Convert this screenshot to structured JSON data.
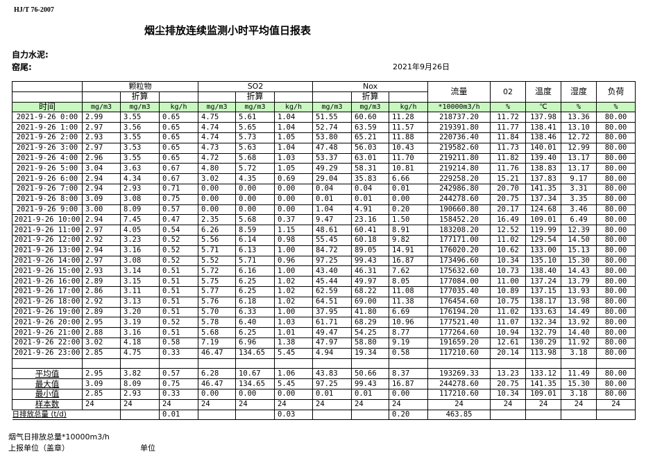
{
  "standard": "HJ/T  76-2007",
  "title": "烟尘排放连续监测小时平均值日报表",
  "company": "自力水泥:",
  "kiln": "窑尾:",
  "date": "2021年9月26日",
  "header": {
    "groups": [
      "颗粒物",
      "SO2",
      "Nox"
    ],
    "converted": "折算",
    "flow": "流量",
    "o2": "02",
    "temp": "温度",
    "humidity": "湿度",
    "load": "负荷",
    "units": [
      "时间",
      "mg/m3",
      "mg/m3",
      "kg/h",
      "mg/m3",
      "mg/m3",
      "kg/h",
      "mg/m3",
      "mg/m3",
      "kg/h",
      "*10000m3/h",
      "%",
      "℃",
      "%",
      "%"
    ]
  },
  "rows": [
    [
      "2021-9-26 0:00",
      "2.99",
      "3.55",
      "0.65",
      "4.75",
      "5.61",
      "1.04",
      "51.55",
      "60.60",
      "11.28",
      "218737.20",
      "11.72",
      "137.98",
      "13.36",
      "80.00"
    ],
    [
      "2021-9-26 1:00",
      "2.97",
      "3.56",
      "0.65",
      "4.74",
      "5.65",
      "1.04",
      "52.74",
      "63.59",
      "11.57",
      "219391.80",
      "11.77",
      "138.41",
      "13.10",
      "80.00"
    ],
    [
      "2021-9-26 2:00",
      "2.93",
      "3.55",
      "0.65",
      "4.74",
      "5.73",
      "1.05",
      "53.80",
      "65.21",
      "11.88",
      "220736.40",
      "11.84",
      "138.46",
      "12.72",
      "80.00"
    ],
    [
      "2021-9-26 3:00",
      "2.97",
      "3.53",
      "0.65",
      "4.73",
      "5.63",
      "1.04",
      "47.48",
      "56.03",
      "10.43",
      "219582.60",
      "11.73",
      "140.01",
      "12.99",
      "80.00"
    ],
    [
      "2021-9-26 4:00",
      "2.96",
      "3.55",
      "0.65",
      "4.72",
      "5.68",
      "1.03",
      "53.37",
      "63.01",
      "11.70",
      "219211.80",
      "11.82",
      "139.40",
      "13.17",
      "80.00"
    ],
    [
      "2021-9-26 5:00",
      "3.04",
      "3.63",
      "0.67",
      "4.80",
      "5.72",
      "1.05",
      "49.29",
      "58.31",
      "10.81",
      "219214.80",
      "11.76",
      "138.83",
      "13.17",
      "80.00"
    ],
    [
      "2021-9-26 6:00",
      "2.94",
      "4.34",
      "0.67",
      "3.02",
      "4.35",
      "0.69",
      "29.04",
      "35.83",
      "6.66",
      "229258.20",
      "15.21",
      "137.83",
      "9.17",
      "80.00"
    ],
    [
      "2021-9-26 7:00",
      "2.94",
      "2.93",
      "0.71",
      "0.00",
      "0.00",
      "0.00",
      "0.04",
      "0.04",
      "0.01",
      "242986.80",
      "20.70",
      "141.35",
      "3.31",
      "80.00"
    ],
    [
      "2021-9-26 8:00",
      "3.09",
      "3.08",
      "0.75",
      "0.00",
      "0.00",
      "0.00",
      "0.01",
      "0.01",
      "0.00",
      "244278.60",
      "20.75",
      "137.34",
      "3.35",
      "80.00"
    ],
    [
      "2021-9-26 9:00",
      "3.00",
      "8.09",
      "0.57",
      "0.00",
      "0.00",
      "0.00",
      "1.04",
      "4.91",
      "0.20",
      "190660.80",
      "20.17",
      "124.68",
      "3.46",
      "80.00"
    ],
    [
      "2021-9-26 10:00",
      "2.94",
      "7.45",
      "0.47",
      "2.35",
      "5.68",
      "0.37",
      "9.47",
      "23.16",
      "1.50",
      "158452.20",
      "16.49",
      "109.01",
      "6.49",
      "80.00"
    ],
    [
      "2021-9-26 11:00",
      "2.97",
      "4.05",
      "0.54",
      "6.26",
      "8.59",
      "1.15",
      "48.61",
      "60.41",
      "8.91",
      "183208.20",
      "12.52",
      "119.99",
      "12.39",
      "80.00"
    ],
    [
      "2021-9-26 12:00",
      "2.92",
      "3.23",
      "0.52",
      "5.56",
      "6.14",
      "0.98",
      "55.45",
      "60.18",
      "9.82",
      "177171.00",
      "11.02",
      "129.54",
      "14.50",
      "80.00"
    ],
    [
      "2021-9-26 13:00",
      "2.94",
      "3.16",
      "0.52",
      "5.71",
      "6.13",
      "1.00",
      "84.72",
      "89.05",
      "14.91",
      "176020.20",
      "10.62",
      "133.00",
      "15.13",
      "80.00"
    ],
    [
      "2021-9-26 14:00",
      "2.97",
      "3.08",
      "0.52",
      "5.52",
      "5.71",
      "0.96",
      "97.25",
      "99.43",
      "16.87",
      "173496.60",
      "10.34",
      "135.10",
      "15.30",
      "80.00"
    ],
    [
      "2021-9-26 15:00",
      "2.93",
      "3.14",
      "0.51",
      "5.72",
      "6.16",
      "1.00",
      "43.40",
      "46.31",
      "7.62",
      "175632.60",
      "10.73",
      "138.40",
      "14.43",
      "80.00"
    ],
    [
      "2021-9-26 16:00",
      "2.89",
      "3.15",
      "0.51",
      "5.75",
      "6.25",
      "1.02",
      "45.44",
      "49.97",
      "8.05",
      "177084.00",
      "11.00",
      "137.24",
      "13.79",
      "80.00"
    ],
    [
      "2021-9-26 17:00",
      "2.86",
      "3.11",
      "0.51",
      "5.77",
      "6.25",
      "1.02",
      "62.59",
      "68.22",
      "11.08",
      "177035.40",
      "10.89",
      "137.15",
      "13.93",
      "80.00"
    ],
    [
      "2021-9-26 18:00",
      "2.92",
      "3.13",
      "0.51",
      "5.76",
      "6.18",
      "1.02",
      "64.51",
      "69.00",
      "11.38",
      "176454.60",
      "10.75",
      "138.17",
      "13.98",
      "80.00"
    ],
    [
      "2021-9-26 19:00",
      "2.89",
      "3.20",
      "0.51",
      "5.70",
      "6.33",
      "1.00",
      "37.95",
      "41.80",
      "6.69",
      "176194.20",
      "11.02",
      "133.63",
      "14.49",
      "80.00"
    ],
    [
      "2021-9-26 20:00",
      "2.95",
      "3.19",
      "0.52",
      "5.78",
      "6.40",
      "1.03",
      "61.71",
      "68.29",
      "10.96",
      "177521.40",
      "11.07",
      "132.34",
      "13.92",
      "80.00"
    ],
    [
      "2021-9-26 21:00",
      "2.88",
      "3.16",
      "0.51",
      "5.68",
      "6.25",
      "1.01",
      "49.47",
      "54.25",
      "8.77",
      "177264.60",
      "10.94",
      "132.79",
      "14.40",
      "80.00"
    ],
    [
      "2021-9-26 22:00",
      "3.02",
      "4.18",
      "0.58",
      "7.19",
      "6.96",
      "1.38",
      "47.97",
      "58.80",
      "9.19",
      "191659.20",
      "12.61",
      "130.29",
      "11.92",
      "80.00"
    ],
    [
      "2021-9-26 23:00",
      "2.85",
      "4.75",
      "0.33",
      "46.47",
      "134.65",
      "5.45",
      "4.94",
      "19.34",
      "0.58",
      "117210.60",
      "20.14",
      "113.98",
      "3.18",
      "80.00"
    ]
  ],
  "summary": [
    [
      "平均值",
      "2.95",
      "3.82",
      "0.57",
      "6.28",
      "10.67",
      "1.06",
      "43.83",
      "50.66",
      "8.37",
      "193269.33",
      "13.23",
      "133.12",
      "11.49",
      "80.00"
    ],
    [
      "最大值",
      "3.09",
      "8.09",
      "0.75",
      "46.47",
      "134.65",
      "5.45",
      "97.25",
      "99.43",
      "16.87",
      "244278.60",
      "20.75",
      "141.35",
      "15.30",
      "80.00"
    ],
    [
      "最小值",
      "2.85",
      "2.93",
      "0.33",
      "0.00",
      "0.00",
      "0.00",
      "0.01",
      "0.01",
      "0.00",
      "117210.60",
      "10.34",
      "109.01",
      "3.18",
      "80.00"
    ],
    [
      "样本数",
      "24",
      "24",
      "24",
      "24",
      "24",
      "24",
      "24",
      "24",
      "24",
      "24",
      "24",
      "24",
      "24",
      "24"
    ]
  ],
  "daily_total": [
    "日排放总量 (t/d)",
    "",
    "",
    "0.01",
    "",
    "",
    "0.03",
    "",
    "",
    "0.20",
    "463.85",
    "",
    "",
    "",
    ""
  ],
  "footer": {
    "flue_total": "烟气日排放总量*10000m3/h",
    "reporter": "上报单位（盖章）",
    "unit": "单位"
  }
}
